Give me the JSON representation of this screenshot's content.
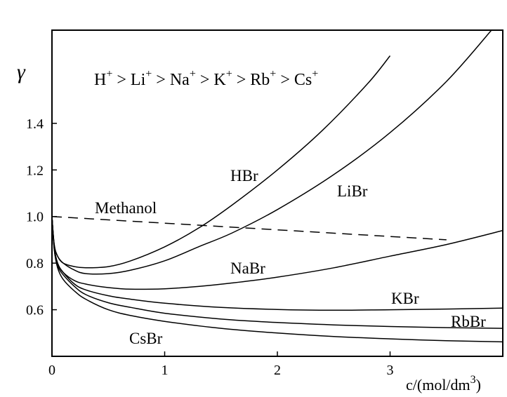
{
  "chart_data": {
    "type": "line",
    "title": "",
    "annotation_parts": [
      "H",
      "+",
      " > Li",
      "+",
      " > Na",
      "+",
      " > K",
      "+",
      " > Rb",
      "+",
      " > Cs",
      "+"
    ],
    "ylabel": "γ",
    "xlabel_parts": [
      "c/(mol/dm",
      "3",
      ")"
    ],
    "xlim": [
      0,
      4
    ],
    "ylim": [
      0.4,
      1.8
    ],
    "x_ticks": [
      "0",
      "1",
      "2",
      "3"
    ],
    "y_ticks": [
      "0.6",
      "0.8",
      "1.0",
      "1.2",
      "1.4"
    ],
    "grid": false,
    "series": [
      {
        "name": "HBr",
        "style": "solid",
        "x": [
          0,
          0.02,
          0.05,
          0.1,
          0.2,
          0.3,
          0.5,
          0.7,
          1.0,
          1.3,
          1.6,
          2.0,
          2.4,
          2.8,
          3.0
        ],
        "y": [
          1.0,
          0.88,
          0.83,
          0.8,
          0.785,
          0.78,
          0.785,
          0.81,
          0.87,
          0.95,
          1.05,
          1.2,
          1.37,
          1.57,
          1.69
        ]
      },
      {
        "name": "LiBr",
        "style": "solid",
        "x": [
          0,
          0.02,
          0.05,
          0.1,
          0.2,
          0.3,
          0.5,
          0.7,
          1.0,
          1.3,
          1.6,
          2.0,
          2.5,
          3.0,
          3.5,
          3.9
        ],
        "y": [
          1.0,
          0.88,
          0.83,
          0.8,
          0.77,
          0.755,
          0.755,
          0.77,
          0.81,
          0.87,
          0.93,
          1.03,
          1.18,
          1.36,
          1.58,
          1.8
        ]
      },
      {
        "name": "NaBr",
        "style": "solid",
        "x": [
          0,
          0.02,
          0.05,
          0.1,
          0.2,
          0.3,
          0.5,
          0.7,
          1.0,
          1.3,
          1.6,
          2.0,
          2.5,
          3.0,
          3.5,
          4.0
        ],
        "y": [
          1.0,
          0.87,
          0.8,
          0.76,
          0.725,
          0.71,
          0.695,
          0.688,
          0.69,
          0.7,
          0.715,
          0.74,
          0.78,
          0.83,
          0.88,
          0.94
        ]
      },
      {
        "name": "KBr",
        "style": "solid",
        "x": [
          0,
          0.02,
          0.05,
          0.1,
          0.2,
          0.3,
          0.5,
          0.7,
          1.0,
          1.5,
          2.0,
          2.5,
          3.0,
          3.5,
          4.0
        ],
        "y": [
          1.0,
          0.87,
          0.8,
          0.76,
          0.71,
          0.685,
          0.66,
          0.645,
          0.628,
          0.61,
          0.601,
          0.598,
          0.6,
          0.603,
          0.607
        ]
      },
      {
        "name": "RbBr",
        "style": "solid",
        "x": [
          0,
          0.02,
          0.05,
          0.1,
          0.2,
          0.3,
          0.5,
          0.7,
          1.0,
          1.5,
          2.0,
          2.5,
          3.0,
          3.5,
          4.0
        ],
        "y": [
          1.0,
          0.86,
          0.79,
          0.75,
          0.7,
          0.665,
          0.63,
          0.61,
          0.585,
          0.56,
          0.545,
          0.535,
          0.528,
          0.523,
          0.52
        ]
      },
      {
        "name": "CsBr",
        "style": "solid",
        "x": [
          0,
          0.02,
          0.05,
          0.1,
          0.2,
          0.3,
          0.5,
          0.7,
          1.0,
          1.5,
          2.0,
          2.5,
          3.0,
          3.5,
          4.0
        ],
        "y": [
          1.0,
          0.86,
          0.78,
          0.73,
          0.68,
          0.645,
          0.6,
          0.575,
          0.55,
          0.52,
          0.5,
          0.485,
          0.475,
          0.467,
          0.462
        ]
      },
      {
        "name": "Methanol",
        "style": "dashed",
        "x": [
          0,
          3.5
        ],
        "y": [
          1.0,
          0.9
        ]
      }
    ]
  }
}
